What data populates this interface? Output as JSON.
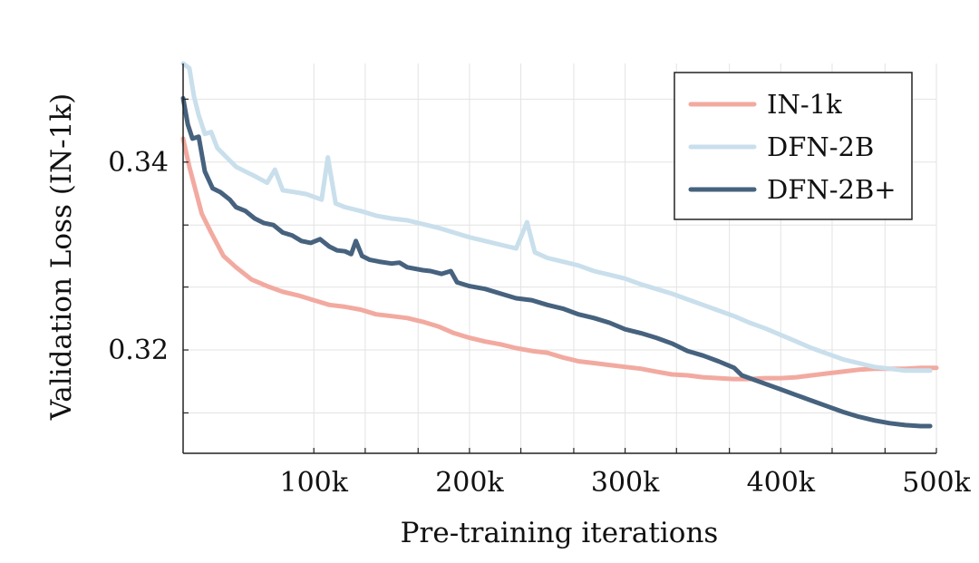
{
  "chart_data": {
    "type": "line",
    "title": "",
    "xlabel": "Pre-training iterations",
    "ylabel": "Validation Loss (IN-1k)",
    "xlim": [
      16000,
      500000
    ],
    "ylim": [
      0.309,
      0.3505
    ],
    "x_ticks": [
      {
        "value": 100000,
        "label": "100k"
      },
      {
        "value": 200000,
        "label": "200k"
      },
      {
        "value": 300000,
        "label": "300k"
      },
      {
        "value": 400000,
        "label": "400k"
      },
      {
        "value": 500000,
        "label": "500k"
      }
    ],
    "y_ticks": [
      {
        "value": 0.32,
        "label": "0.32"
      },
      {
        "value": 0.34,
        "label": "0.34"
      }
    ],
    "x_grid": [
      100000,
      133000,
      167000,
      200000,
      233000,
      267000,
      300000,
      333000,
      367000,
      400000,
      433000,
      467000,
      500000
    ],
    "y_grid": [
      0.3133,
      0.32,
      0.3267,
      0.3333,
      0.34,
      0.3467
    ],
    "grid": true,
    "legend_position": "top-right",
    "series": [
      {
        "name": "IN-1k",
        "color": "#f2aaa0",
        "points": [
          [
            16000,
            0.3425
          ],
          [
            20000,
            0.3395
          ],
          [
            28000,
            0.3345
          ],
          [
            34000,
            0.3325
          ],
          [
            42000,
            0.33
          ],
          [
            50000,
            0.3288
          ],
          [
            60000,
            0.3275
          ],
          [
            70000,
            0.3268
          ],
          [
            80000,
            0.3262
          ],
          [
            90000,
            0.3258
          ],
          [
            100000,
            0.3253
          ],
          [
            110000,
            0.3248
          ],
          [
            120000,
            0.3246
          ],
          [
            130000,
            0.3243
          ],
          [
            140000,
            0.3238
          ],
          [
            150000,
            0.3236
          ],
          [
            160000,
            0.3234
          ],
          [
            170000,
            0.323
          ],
          [
            180000,
            0.3225
          ],
          [
            190000,
            0.3218
          ],
          [
            200000,
            0.3213
          ],
          [
            210000,
            0.3209
          ],
          [
            220000,
            0.3206
          ],
          [
            230000,
            0.3202
          ],
          [
            240000,
            0.3199
          ],
          [
            250000,
            0.3197
          ],
          [
            260000,
            0.3192
          ],
          [
            270000,
            0.3188
          ],
          [
            280000,
            0.3186
          ],
          [
            290000,
            0.3184
          ],
          [
            300000,
            0.3182
          ],
          [
            310000,
            0.318
          ],
          [
            320000,
            0.3177
          ],
          [
            330000,
            0.3174
          ],
          [
            340000,
            0.3173
          ],
          [
            350000,
            0.3171
          ],
          [
            360000,
            0.317
          ],
          [
            370000,
            0.3169
          ],
          [
            380000,
            0.3169
          ],
          [
            390000,
            0.317
          ],
          [
            400000,
            0.317
          ],
          [
            410000,
            0.3171
          ],
          [
            420000,
            0.3173
          ],
          [
            430000,
            0.3175
          ],
          [
            440000,
            0.3177
          ],
          [
            450000,
            0.3179
          ],
          [
            460000,
            0.318
          ],
          [
            470000,
            0.318
          ],
          [
            480000,
            0.318
          ],
          [
            490000,
            0.3181
          ],
          [
            500000,
            0.3181
          ]
        ]
      },
      {
        "name": "DFN-2B",
        "color": "#c9dfec",
        "points": [
          [
            16000,
            0.3505
          ],
          [
            20000,
            0.35
          ],
          [
            23000,
            0.347
          ],
          [
            26000,
            0.345
          ],
          [
            30000,
            0.343
          ],
          [
            34000,
            0.3432
          ],
          [
            38000,
            0.3415
          ],
          [
            44000,
            0.3405
          ],
          [
            50000,
            0.3395
          ],
          [
            56000,
            0.339
          ],
          [
            62000,
            0.3385
          ],
          [
            70000,
            0.3378
          ],
          [
            75000,
            0.3392
          ],
          [
            80000,
            0.337
          ],
          [
            88000,
            0.3368
          ],
          [
            95000,
            0.3366
          ],
          [
            105000,
            0.336
          ],
          [
            109000,
            0.3405
          ],
          [
            114000,
            0.3356
          ],
          [
            120000,
            0.3352
          ],
          [
            130000,
            0.3348
          ],
          [
            140000,
            0.3343
          ],
          [
            150000,
            0.334
          ],
          [
            160000,
            0.3338
          ],
          [
            170000,
            0.3334
          ],
          [
            180000,
            0.333
          ],
          [
            190000,
            0.3325
          ],
          [
            200000,
            0.332
          ],
          [
            210000,
            0.3316
          ],
          [
            220000,
            0.3312
          ],
          [
            230000,
            0.3308
          ],
          [
            237000,
            0.3336
          ],
          [
            242000,
            0.3304
          ],
          [
            250000,
            0.3298
          ],
          [
            260000,
            0.3294
          ],
          [
            270000,
            0.329
          ],
          [
            280000,
            0.3284
          ],
          [
            290000,
            0.328
          ],
          [
            300000,
            0.3276
          ],
          [
            310000,
            0.327
          ],
          [
            320000,
            0.3265
          ],
          [
            330000,
            0.326
          ],
          [
            340000,
            0.3254
          ],
          [
            350000,
            0.3248
          ],
          [
            360000,
            0.3242
          ],
          [
            370000,
            0.3236
          ],
          [
            380000,
            0.3229
          ],
          [
            390000,
            0.3223
          ],
          [
            400000,
            0.3216
          ],
          [
            410000,
            0.3209
          ],
          [
            420000,
            0.3202
          ],
          [
            430000,
            0.3196
          ],
          [
            440000,
            0.319
          ],
          [
            450000,
            0.3186
          ],
          [
            460000,
            0.3182
          ],
          [
            470000,
            0.318
          ],
          [
            480000,
            0.3178
          ],
          [
            490000,
            0.3178
          ],
          [
            496000,
            0.3178
          ]
        ]
      },
      {
        "name": "DFN-2B+",
        "color": "#46627e",
        "points": [
          [
            16000,
            0.3468
          ],
          [
            19000,
            0.344
          ],
          [
            22000,
            0.3425
          ],
          [
            26000,
            0.3427
          ],
          [
            30000,
            0.339
          ],
          [
            35000,
            0.3372
          ],
          [
            40000,
            0.3368
          ],
          [
            46000,
            0.336
          ],
          [
            50000,
            0.3352
          ],
          [
            56000,
            0.3348
          ],
          [
            62000,
            0.334
          ],
          [
            68000,
            0.3335
          ],
          [
            74000,
            0.3333
          ],
          [
            80000,
            0.3325
          ],
          [
            86000,
            0.3322
          ],
          [
            92000,
            0.3316
          ],
          [
            98000,
            0.3314
          ],
          [
            104000,
            0.3318
          ],
          [
            110000,
            0.331
          ],
          [
            115000,
            0.3306
          ],
          [
            120000,
            0.3305
          ],
          [
            124000,
            0.3302
          ],
          [
            127000,
            0.3316
          ],
          [
            131000,
            0.33
          ],
          [
            136000,
            0.3296
          ],
          [
            142000,
            0.3294
          ],
          [
            150000,
            0.3292
          ],
          [
            155000,
            0.3293
          ],
          [
            160000,
            0.3288
          ],
          [
            170000,
            0.3285
          ],
          [
            175000,
            0.3284
          ],
          [
            182000,
            0.3281
          ],
          [
            188000,
            0.3284
          ],
          [
            192000,
            0.3272
          ],
          [
            200000,
            0.3268
          ],
          [
            210000,
            0.3265
          ],
          [
            220000,
            0.326
          ],
          [
            230000,
            0.3255
          ],
          [
            240000,
            0.3253
          ],
          [
            250000,
            0.3248
          ],
          [
            260000,
            0.3244
          ],
          [
            270000,
            0.3238
          ],
          [
            280000,
            0.3234
          ],
          [
            290000,
            0.3229
          ],
          [
            300000,
            0.3222
          ],
          [
            310000,
            0.3218
          ],
          [
            320000,
            0.3213
          ],
          [
            330000,
            0.3207
          ],
          [
            340000,
            0.3199
          ],
          [
            350000,
            0.3194
          ],
          [
            360000,
            0.3188
          ],
          [
            370000,
            0.3181
          ],
          [
            375000,
            0.3173
          ],
          [
            380000,
            0.317
          ],
          [
            390000,
            0.3164
          ],
          [
            400000,
            0.3158
          ],
          [
            410000,
            0.3152
          ],
          [
            420000,
            0.3146
          ],
          [
            430000,
            0.314
          ],
          [
            440000,
            0.3134
          ],
          [
            450000,
            0.3129
          ],
          [
            460000,
            0.3125
          ],
          [
            470000,
            0.3122
          ],
          [
            480000,
            0.312
          ],
          [
            490000,
            0.3119
          ],
          [
            496000,
            0.3119
          ]
        ]
      }
    ]
  }
}
